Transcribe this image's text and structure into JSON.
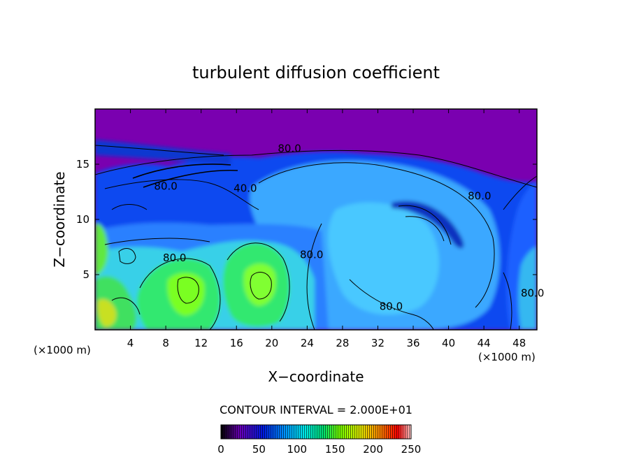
{
  "chart_data": {
    "type": "heatmap",
    "title": "turbulent diffusion coefficient",
    "xlabel": "X−coordinate",
    "ylabel": "Z−coordinate",
    "x_unit_left": "(×1000 m)",
    "x_unit_right": "(×1000 m)",
    "xlim": [
      0,
      50
    ],
    "ylim": [
      0,
      20
    ],
    "x_ticks": [
      "4",
      "8",
      "12",
      "16",
      "20",
      "24",
      "28",
      "32",
      "36",
      "40",
      "44",
      "48"
    ],
    "y_ticks": [
      "5",
      "10",
      "15"
    ],
    "x_tick_values": [
      4,
      8,
      12,
      16,
      20,
      24,
      28,
      32,
      36,
      40,
      44,
      48
    ],
    "y_tick_values": [
      5,
      10,
      15
    ],
    "contour_interval_text": "CONTOUR INTERVAL = 2.000E+01",
    "contour_labels": [
      {
        "text": "80.0",
        "x": 22,
        "y": 16.1
      },
      {
        "text": "80.0",
        "x": 8,
        "y": 12.7
      },
      {
        "text": "40.0",
        "x": 17,
        "y": 12.5
      },
      {
        "text": "80.0",
        "x": 43.5,
        "y": 11.8
      },
      {
        "text": "80.0",
        "x": 9,
        "y": 6.2
      },
      {
        "text": "80.0",
        "x": 24.5,
        "y": 6.5
      },
      {
        "text": "80.0",
        "x": 33.5,
        "y": 1.8
      },
      {
        "text": "80.0",
        "x": 49.5,
        "y": 3.0
      }
    ],
    "colorbar": {
      "ticks": [
        "0",
        "50",
        "100",
        "150",
        "200",
        "250"
      ],
      "tick_values": [
        0,
        50,
        100,
        150,
        200,
        250
      ],
      "range": [
        0,
        250
      ],
      "colors": [
        "#000000",
        "#6a00b8",
        "#0018e0",
        "#0098ff",
        "#00e8e8",
        "#00e070",
        "#70ff00",
        "#e8e800",
        "#ff8000",
        "#ff0000",
        "#ffffff"
      ]
    },
    "field_colors": {
      "low": "#7a00b0",
      "blue": "#1048f0",
      "mid_blue": "#2a80ff",
      "light_blue": "#40b8ff",
      "cyan": "#38e0e0",
      "green": "#30e870",
      "lime": "#7aff20",
      "yellow": "#e0e000"
    }
  }
}
